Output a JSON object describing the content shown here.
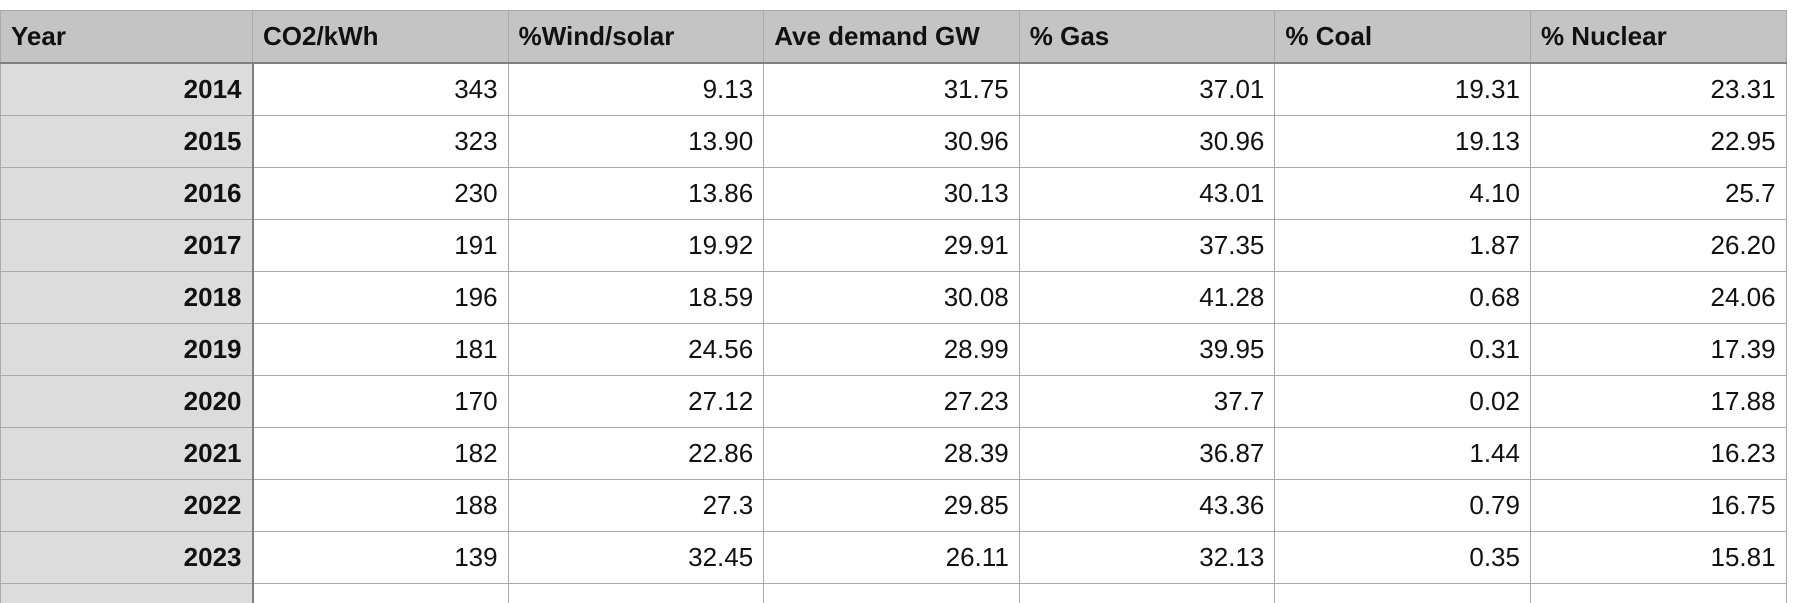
{
  "columns": [
    "Year",
    "CO2/kWh",
    "%Wind/solar",
    "Ave demand GW",
    "% Gas",
    "% Coal",
    "% Nuclear"
  ],
  "rows": [
    {
      "year": "2014",
      "cells": [
        "343",
        "9.13",
        "31.75",
        "37.01",
        "19.31",
        "23.31"
      ]
    },
    {
      "year": "2015",
      "cells": [
        "323",
        "13.90",
        "30.96",
        "30.96",
        "19.13",
        "22.95"
      ]
    },
    {
      "year": "2016",
      "cells": [
        "230",
        "13.86",
        "30.13",
        "43.01",
        "4.10",
        "25.7"
      ]
    },
    {
      "year": "2017",
      "cells": [
        "191",
        "19.92",
        "29.91",
        "37.35",
        "1.87",
        "26.20"
      ]
    },
    {
      "year": "2018",
      "cells": [
        "196",
        "18.59",
        "30.08",
        "41.28",
        "0.68",
        "24.06"
      ]
    },
    {
      "year": "2019",
      "cells": [
        "181",
        "24.56",
        "28.99",
        "39.95",
        "0.31",
        "17.39"
      ]
    },
    {
      "year": "2020",
      "cells": [
        "170",
        "27.12",
        "27.23",
        "37.7",
        "0.02",
        "17.88"
      ]
    },
    {
      "year": "2021",
      "cells": [
        "182",
        "22.86",
        "28.39",
        "36.87",
        "1.44",
        "16.23"
      ]
    },
    {
      "year": "2022",
      "cells": [
        "188",
        "27.3",
        "29.85",
        "43.36",
        "0.79",
        "16.75"
      ]
    },
    {
      "year": "2023",
      "cells": [
        "139",
        "32.45",
        "26.11",
        "32.13",
        "0.35",
        "15.81"
      ]
    }
  ]
}
